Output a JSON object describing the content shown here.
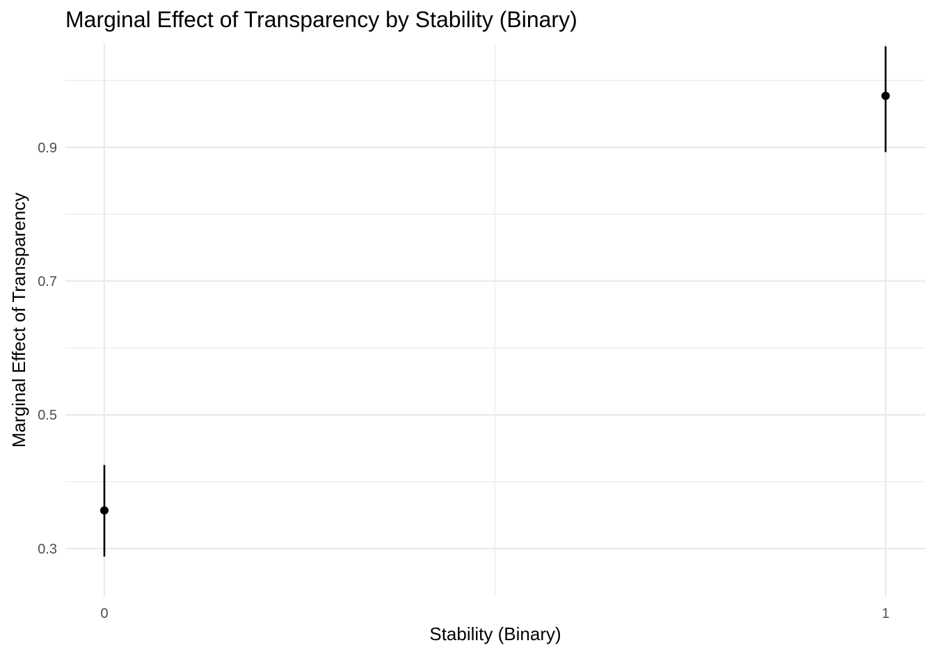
{
  "chart_data": {
    "type": "scatter",
    "title": "Marginal Effect of Transparency by Stability (Binary)",
    "xlabel": "Stability (Binary)",
    "ylabel": "Marginal Effect of Transparency",
    "x_ticks": [
      "0",
      "1"
    ],
    "y_ticks": [
      "0.3",
      "0.5",
      "0.7",
      "0.9"
    ],
    "y_tick_values": [
      0.3,
      0.5,
      0.7,
      0.9
    ],
    "y_minor_values": [
      0.4,
      0.6,
      0.8,
      1.0
    ],
    "xlim": [
      0,
      1
    ],
    "ylim": [
      0.24,
      1.06
    ],
    "grid": true,
    "legend": "none",
    "points": [
      {
        "x": 0,
        "y": 0.357,
        "lower": 0.288,
        "upper": 0.425
      },
      {
        "x": 1,
        "y": 0.977,
        "lower": 0.893,
        "upper": 1.051
      }
    ],
    "colors": {
      "point": "#000000",
      "grid_major": "#ebebeb",
      "grid_minor": "#ebebeb",
      "background": "#ffffff"
    }
  }
}
